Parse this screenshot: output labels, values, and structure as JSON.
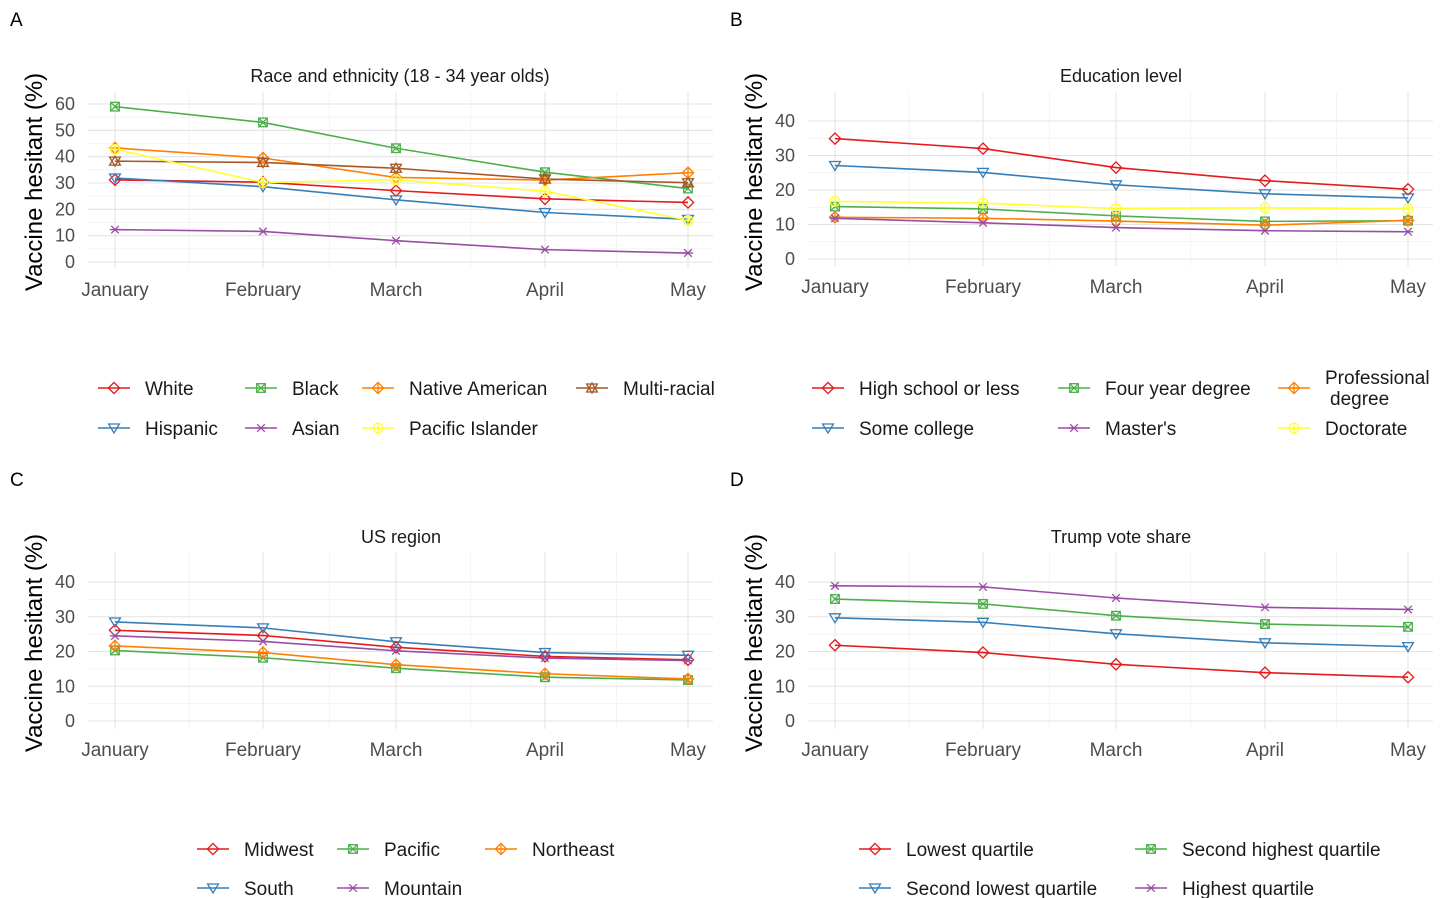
{
  "chart_data": [
    {
      "type": "line",
      "panel_letter": "A",
      "title": "Race and ethnicity (18 - 34 year olds)",
      "ylabel": "Vaccine hesitant (%)",
      "xlabel": "",
      "categories": [
        "January",
        "February",
        "March",
        "April",
        "May"
      ],
      "y_ticks": [
        0,
        10,
        20,
        30,
        40,
        50,
        60
      ],
      "ylim": [
        -3,
        63
      ],
      "grid": true,
      "legend_position": "bottom",
      "legend_columns": 4,
      "series": [
        {
          "name": "White",
          "color": "#E41A1C",
          "marker": "diamond",
          "values": [
            31.2,
            30.3,
            27.1,
            24.0,
            22.6
          ]
        },
        {
          "name": "Black",
          "color": "#4DAF4A",
          "marker": "squarecross",
          "values": [
            59.0,
            53.0,
            43.2,
            34.1,
            27.9
          ]
        },
        {
          "name": "Native American",
          "color": "#FF7F00",
          "marker": "diamondplus",
          "values": [
            43.3,
            39.5,
            32.1,
            31.1,
            33.9
          ]
        },
        {
          "name": "Multi-racial",
          "color": "#A65628",
          "marker": "startriangle",
          "values": [
            38.3,
            37.8,
            35.6,
            31.5,
            30.1
          ]
        },
        {
          "name": "Hispanic",
          "color": "#377EB8",
          "marker": "triangledown",
          "values": [
            31.9,
            28.6,
            23.6,
            18.8,
            16.2
          ]
        },
        {
          "name": "Asian",
          "color": "#984EA3",
          "marker": "asterisk",
          "values": [
            12.3,
            11.6,
            8.1,
            4.7,
            3.4
          ]
        },
        {
          "name": "Pacific Islander",
          "color": "#FFFF33",
          "marker": "circleplus",
          "values": [
            42.8,
            30.2,
            31.2,
            26.9,
            15.8
          ]
        }
      ]
    },
    {
      "type": "line",
      "panel_letter": "B",
      "title": "Education level",
      "ylabel": "Vaccine hesitant (%)",
      "xlabel": "",
      "categories": [
        "January",
        "February",
        "March",
        "April",
        "May"
      ],
      "y_ticks": [
        0,
        10,
        20,
        30,
        40
      ],
      "ylim": [
        -2,
        45
      ],
      "grid": true,
      "legend_position": "bottom",
      "legend_columns": 3,
      "series": [
        {
          "name": "High school or less",
          "color": "#E41A1C",
          "marker": "diamond",
          "values": [
            34.9,
            32.0,
            26.5,
            22.7,
            20.2
          ]
        },
        {
          "name": "Four year degree",
          "color": "#4DAF4A",
          "marker": "squarecross",
          "values": [
            15.2,
            14.5,
            12.5,
            10.9,
            11.1
          ]
        },
        {
          "name": "Professional\ndegree",
          "color": "#FF7F00",
          "marker": "diamondplus",
          "values": [
            12.1,
            11.8,
            11.0,
            9.8,
            11.2
          ]
        },
        {
          "name": "Some college",
          "color": "#377EB8",
          "marker": "triangledown",
          "values": [
            27.1,
            25.1,
            21.5,
            18.9,
            17.7
          ]
        },
        {
          "name": "Master's",
          "color": "#984EA3",
          "marker": "asterisk",
          "values": [
            11.8,
            10.5,
            9.1,
            8.2,
            7.9
          ]
        },
        {
          "name": "Doctorate",
          "color": "#FFFF33",
          "marker": "circleplus",
          "values": [
            16.7,
            16.2,
            14.6,
            14.8,
            14.5
          ]
        }
      ]
    },
    {
      "type": "line",
      "panel_letter": "C",
      "title": "US region",
      "ylabel": "Vaccine hesitant (%)",
      "xlabel": "",
      "categories": [
        "January",
        "February",
        "March",
        "April",
        "May"
      ],
      "y_ticks": [
        0,
        10,
        20,
        30,
        40
      ],
      "ylim": [
        -2,
        45
      ],
      "grid": true,
      "legend_position": "bottom",
      "legend_columns": 3,
      "series": [
        {
          "name": "Midwest",
          "color": "#E41A1C",
          "marker": "diamond",
          "values": [
            26.1,
            24.6,
            21.2,
            18.6,
            17.6
          ]
        },
        {
          "name": "Pacific",
          "color": "#4DAF4A",
          "marker": "squarecross",
          "values": [
            20.3,
            18.2,
            15.2,
            12.6,
            11.8
          ]
        },
        {
          "name": "Northeast",
          "color": "#FF7F00",
          "marker": "diamondplus",
          "values": [
            21.6,
            19.7,
            16.2,
            13.6,
            12.1
          ]
        },
        {
          "name": "South",
          "color": "#377EB8",
          "marker": "triangledown",
          "values": [
            28.5,
            26.8,
            22.8,
            19.7,
            18.9
          ]
        },
        {
          "name": "Mountain",
          "color": "#984EA3",
          "marker": "asterisk",
          "values": [
            24.5,
            22.9,
            20.2,
            18.1,
            17.4
          ]
        }
      ]
    },
    {
      "type": "line",
      "panel_letter": "D",
      "title": "Trump vote share",
      "ylabel": "Vaccine hesitant (%)",
      "xlabel": "",
      "categories": [
        "January",
        "February",
        "March",
        "April",
        "May"
      ],
      "y_ticks": [
        0,
        10,
        20,
        30,
        40
      ],
      "ylim": [
        -2,
        45
      ],
      "grid": true,
      "legend_position": "bottom",
      "legend_columns": 2,
      "series": [
        {
          "name": "Lowest quartile",
          "color": "#E41A1C",
          "marker": "diamond",
          "values": [
            21.8,
            19.7,
            16.3,
            13.9,
            12.6
          ]
        },
        {
          "name": "Second highest quartile",
          "color": "#4DAF4A",
          "marker": "squarecross",
          "values": [
            35.1,
            33.7,
            30.3,
            27.9,
            27.1
          ]
        },
        {
          "name": "Second lowest quartile",
          "color": "#377EB8",
          "marker": "triangledown",
          "values": [
            29.7,
            28.4,
            25.1,
            22.5,
            21.4
          ]
        },
        {
          "name": "Highest quartile",
          "color": "#984EA3",
          "marker": "asterisk",
          "values": [
            38.9,
            38.6,
            35.4,
            32.7,
            32.1
          ]
        }
      ]
    }
  ]
}
